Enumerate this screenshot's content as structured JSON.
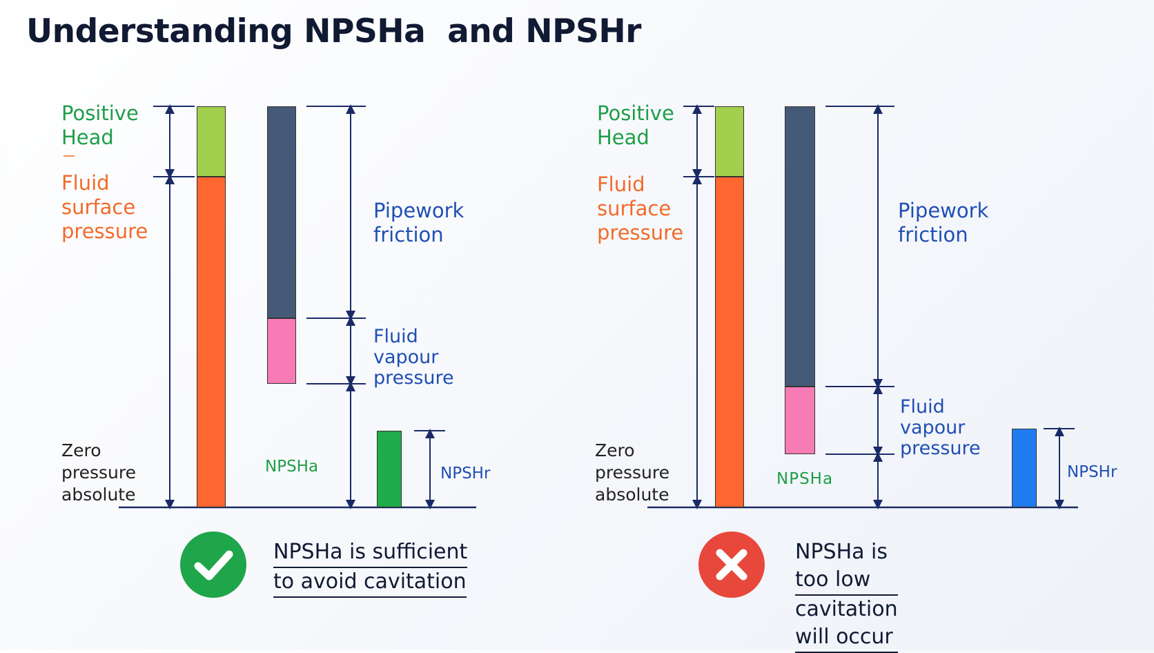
{
  "title": "Understanding NPSHa  and NPSHr",
  "colors": {
    "positive_head": "#a3cf4e",
    "fluid_surface": "#ff6630",
    "pipework_friction": "#455a78",
    "vapour_pressure": "#f77bb5",
    "npsha_bar": "#1fac4a",
    "npshr_bar": "#1f7cf0",
    "axis": "#1a2a66",
    "ok": "#1fa54a",
    "bad": "#e8473b"
  },
  "left_panel": {
    "labels": {
      "positive_head": "Positive\nHead",
      "fluid_surface": "Fluid\nsurface\npressure",
      "pipework_friction": "Pipework\nfriction",
      "vapour_pressure": "Fluid\nvapour\npressure",
      "zero_pressure": "Zero\npressure\nabsolute",
      "npsha": "NPSHa",
      "npshr": "NPSHr"
    },
    "status": {
      "icon": "check-icon",
      "line1": "NPSHa is sufficient",
      "line2": "to avoid cavitation"
    }
  },
  "right_panel": {
    "labels": {
      "positive_head": "Positive\nHead",
      "fluid_surface": "Fluid\nsurface\npressure",
      "pipework_friction": "Pipework\nfriction",
      "vapour_pressure": "Fluid\nvapour\npressure",
      "zero_pressure": "Zero\npressure\nabsolute",
      "npsha": "NPSHa",
      "npshr": "NPSHr"
    },
    "status": {
      "icon": "cross-icon",
      "line1": "NPSHa is too low",
      "line2": "cavitation will occur"
    }
  }
}
